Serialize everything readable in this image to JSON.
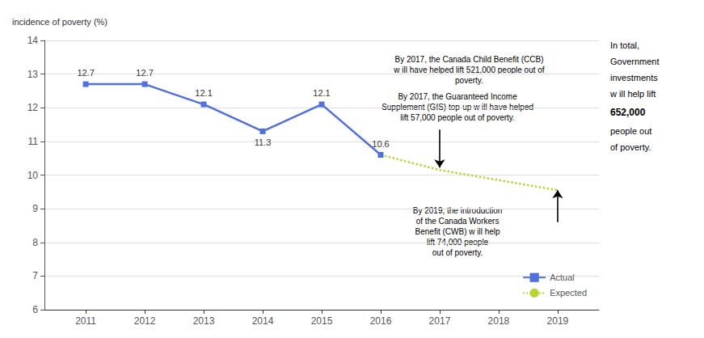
{
  "chart_data": {
    "type": "line",
    "ylabel": "incidence of poverty (%)",
    "series": [
      {
        "name": "Actual",
        "x": [
          2011,
          2012,
          2013,
          2014,
          2015,
          2016
        ],
        "values": [
          12.7,
          12.7,
          12.1,
          11.3,
          12.1,
          10.6
        ],
        "marker": "square",
        "line_style": "solid",
        "data_labels": true
      },
      {
        "name": "Expected",
        "x": [
          2016,
          2017,
          2018,
          2019
        ],
        "values": [
          10.6,
          10.15,
          9.85,
          9.55
        ],
        "marker": "none",
        "line_style": "dotted"
      }
    ],
    "xlim": [
      2010.3,
      2019.7
    ],
    "xticks": [
      2011,
      2012,
      2013,
      2014,
      2015,
      2016,
      2017,
      2018,
      2019
    ],
    "ylim": [
      6,
      14
    ],
    "yticks": [
      6,
      7,
      8,
      9,
      10,
      11,
      12,
      13,
      14
    ],
    "grid": true,
    "legend": "lower right",
    "annotations": [
      {
        "text": "By 2017, the Canada Child Benefit (CCB)\nw ill have helped lift 521,000 people out of\npoverty."
      },
      {
        "text": "By 2017, the Guaranteed Income\nSupplement (GIS) top-up w ill have helped\nlift 57,000 people out of poverty.",
        "arrow": {
          "x": 2017,
          "from": 11.35,
          "to": 10.22
        }
      },
      {
        "text": "By 2019, the introduction\nof the Canada Workers\nBenefit (CWB) w ill help\nlift 74,000 people\nout of poverty.",
        "arrow": {
          "x": 2019,
          "from": 8.6,
          "to": 9.55
        }
      },
      {
        "text": "In total,\nGovernment\ninvestments\nw ill help lift\n652,000\npeople out\nof poverty."
      }
    ]
  }
}
